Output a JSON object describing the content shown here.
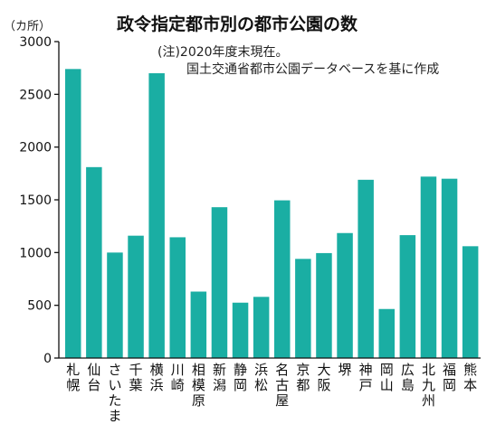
{
  "chart_data": {
    "type": "bar",
    "title": "政令指定都市別の都市公園の数",
    "ylabel": "（カ所）",
    "ylim": [
      0,
      3000
    ],
    "yticks": [
      0,
      500,
      1000,
      1500,
      2000,
      2500,
      3000
    ],
    "grid": false,
    "notes": [
      "(注)2020年度末現在。",
      "国土交通省都市公園データベースを基に作成"
    ],
    "color": "#1aaea3",
    "categories": [
      "札幌",
      "仙台",
      "さいたま",
      "千葉",
      "横浜",
      "川崎",
      "相模原",
      "新潟",
      "静岡",
      "浜松",
      "名古屋",
      "京都",
      "大阪",
      "堺",
      "神戸",
      "岡山",
      "広島",
      "北九州",
      "福岡",
      "熊本"
    ],
    "values": [
      2740,
      1810,
      1000,
      1160,
      2700,
      1145,
      630,
      1430,
      525,
      580,
      1495,
      940,
      995,
      1185,
      1690,
      465,
      1165,
      1720,
      1700,
      1060
    ]
  }
}
